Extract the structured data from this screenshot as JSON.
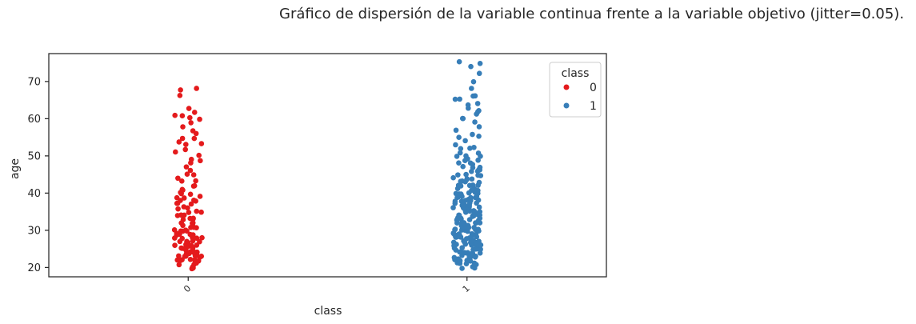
{
  "suptitle": "Gráfico de dispersión de la variable continua frente a la variable objetivo (jitter=0.05).",
  "chart_data": {
    "type": "scatter",
    "xlabel": "class",
    "ylabel": "age",
    "categories": [
      "0",
      "1"
    ],
    "xlim": [
      -0.5,
      1.5
    ],
    "ylim": [
      17.5,
      77.5
    ],
    "yticks": [
      20,
      30,
      40,
      50,
      60,
      70
    ],
    "jitter": 0.05,
    "grid": false,
    "legend": {
      "title": "class",
      "position": "upper-right",
      "entries": [
        "0",
        "1"
      ]
    },
    "colors": {
      "0": "#e41a1c",
      "1": "#377eb8"
    },
    "series": [
      {
        "name": "0",
        "values": [
          20,
          20,
          20,
          21,
          21,
          21,
          21,
          22,
          22,
          22,
          22,
          22,
          22,
          23,
          23,
          23,
          23,
          23,
          23,
          23,
          24,
          24,
          24,
          24,
          24,
          24,
          24,
          25,
          25,
          25,
          25,
          25,
          25,
          26,
          26,
          26,
          26,
          26,
          27,
          27,
          27,
          27,
          27,
          28,
          28,
          28,
          28,
          28,
          29,
          29,
          29,
          29,
          29,
          30,
          30,
          30,
          30,
          30,
          31,
          31,
          31,
          31,
          32,
          32,
          32,
          32,
          33,
          33,
          33,
          33,
          34,
          34,
          34,
          35,
          35,
          35,
          36,
          36,
          36,
          37,
          37,
          37,
          38,
          38,
          38,
          39,
          39,
          39,
          40,
          40,
          40,
          41,
          41,
          42,
          42,
          43,
          43,
          44,
          45,
          45,
          46,
          47,
          48,
          49,
          49,
          50,
          51,
          52,
          53,
          53,
          54,
          55,
          55,
          56,
          57,
          58,
          59,
          60,
          60,
          61,
          61,
          62,
          63,
          66,
          68,
          68
        ]
      },
      {
        "name": "1",
        "values": [
          20,
          20,
          20,
          21,
          21,
          21,
          21,
          21,
          22,
          22,
          22,
          22,
          22,
          22,
          23,
          23,
          23,
          23,
          23,
          23,
          23,
          24,
          24,
          24,
          24,
          24,
          24,
          24,
          24,
          25,
          25,
          25,
          25,
          25,
          25,
          25,
          25,
          26,
          26,
          26,
          26,
          26,
          26,
          26,
          26,
          27,
          27,
          27,
          27,
          27,
          27,
          27,
          27,
          28,
          28,
          28,
          28,
          28,
          28,
          28,
          28,
          29,
          29,
          29,
          29,
          29,
          29,
          29,
          29,
          30,
          30,
          30,
          30,
          30,
          30,
          30,
          30,
          31,
          31,
          31,
          31,
          31,
          31,
          31,
          31,
          32,
          32,
          32,
          32,
          32,
          32,
          32,
          32,
          33,
          33,
          33,
          33,
          33,
          33,
          33,
          33,
          34,
          34,
          34,
          34,
          34,
          34,
          34,
          34,
          35,
          35,
          35,
          35,
          35,
          35,
          35,
          36,
          36,
          36,
          36,
          36,
          36,
          36,
          37,
          37,
          37,
          37,
          37,
          37,
          37,
          38,
          38,
          38,
          38,
          38,
          38,
          38,
          39,
          39,
          39,
          39,
          39,
          39,
          40,
          40,
          40,
          40,
          40,
          40,
          41,
          41,
          41,
          41,
          41,
          42,
          42,
          42,
          42,
          42,
          43,
          43,
          43,
          43,
          44,
          44,
          44,
          44,
          45,
          45,
          45,
          45,
          46,
          46,
          46,
          46,
          47,
          47,
          47,
          48,
          48,
          48,
          49,
          49,
          49,
          50,
          50,
          50,
          51,
          51,
          52,
          52,
          52,
          53,
          54,
          55,
          55,
          56,
          57,
          58,
          59,
          60,
          60,
          61,
          62,
          62,
          63,
          64,
          64,
          65,
          65,
          66,
          66,
          68,
          70,
          72,
          74,
          75,
          75
        ]
      }
    ]
  }
}
